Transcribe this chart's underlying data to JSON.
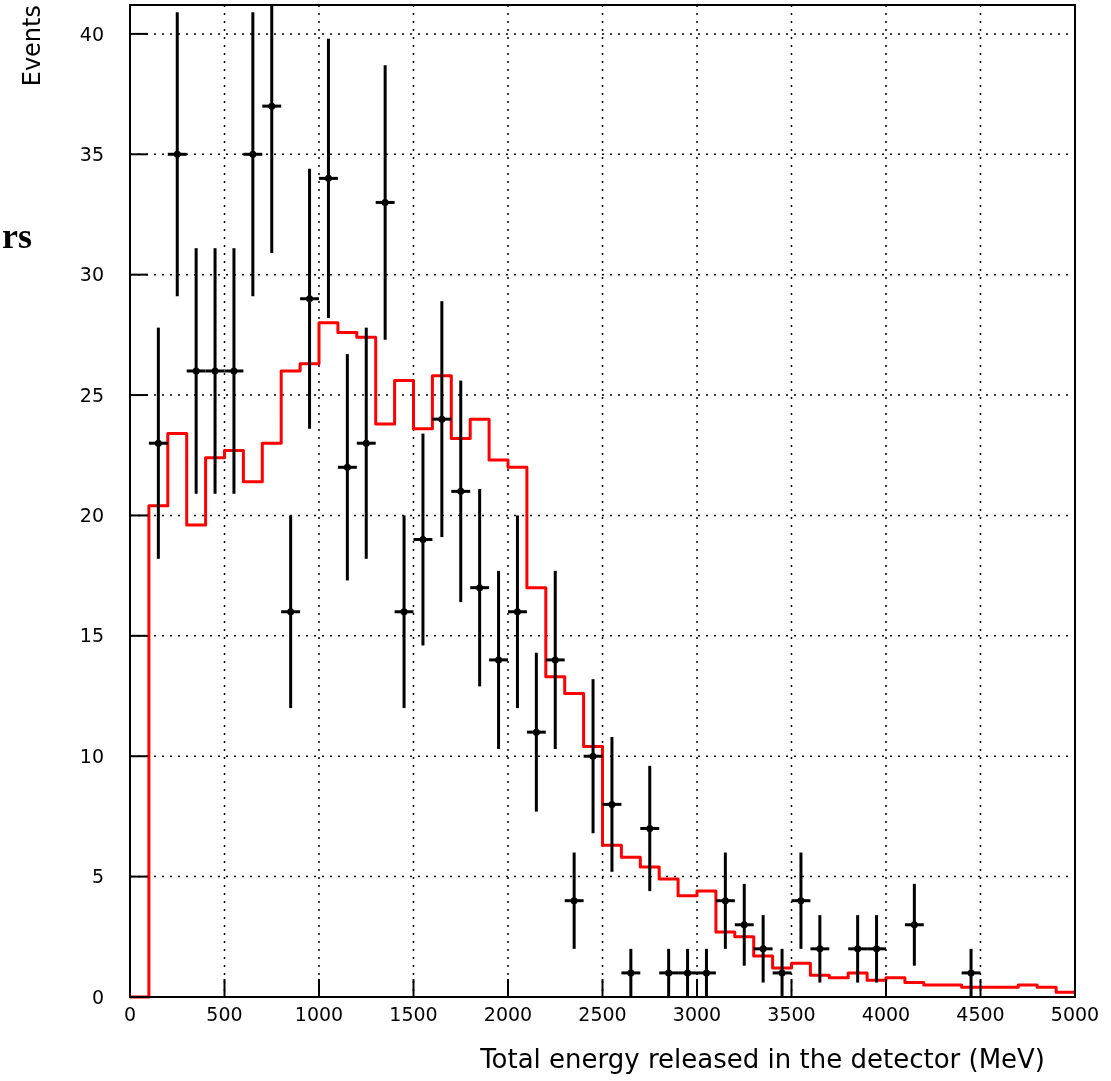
{
  "chart_data": {
    "type": "histogram",
    "xlabel": "Total energy released in the detector (MeV)",
    "ylabel": "Events",
    "annotations": [
      "rs"
    ],
    "xlim": [
      0,
      5000
    ],
    "xticks": [
      0,
      500,
      1000,
      1500,
      2000,
      2500,
      3000,
      3500,
      4000,
      4500,
      5000
    ],
    "ylim": [
      0,
      41.2
    ],
    "yticks": [
      0,
      5,
      10,
      15,
      20,
      25,
      30,
      35,
      40
    ],
    "grid": true,
    "bins": [
      0,
      100,
      200,
      300,
      400,
      500,
      600,
      700,
      800,
      900,
      1000,
      1100,
      1200,
      1300,
      1400,
      1500,
      1600,
      1700,
      1800,
      1900,
      2000,
      2100,
      2200,
      2300,
      2400,
      2500,
      2600,
      2700,
      2800,
      2900,
      3000,
      3100,
      3200,
      3300,
      3400,
      3500,
      3600,
      3700,
      3800,
      3900,
      4000,
      4100,
      4200,
      4300,
      4400,
      4500,
      4600,
      4700,
      4800,
      4900,
      5000
    ],
    "series": [
      {
        "type": "histogram",
        "color": "#ff0000",
        "values": [
          0,
          20.4,
          23.4,
          19.6,
          22.4,
          22.7,
          21.4,
          23,
          26,
          26.3,
          28,
          27.6,
          27.4,
          23.8,
          25.6,
          23.6,
          25.8,
          23.2,
          24,
          22.3,
          22,
          17,
          13.3,
          12.6,
          10.4,
          6.3,
          5.8,
          5.4,
          4.9,
          4.2,
          4.4,
          2.7,
          2.5,
          1.7,
          1.2,
          1.4,
          0.9,
          0.8,
          1.0,
          0.7,
          0.8,
          0.6,
          0.5,
          0.5,
          0.4,
          0.4,
          0.4,
          0.5,
          0.4,
          0.2
        ]
      },
      {
        "type": "scatter",
        "color": "#000000",
        "x": [
          150,
          250,
          350,
          450,
          550,
          650,
          750,
          850,
          950,
          1050,
          1150,
          1250,
          1350,
          1450,
          1550,
          1650,
          1750,
          1850,
          1950,
          2050,
          2150,
          2250,
          2350,
          2450,
          2550,
          2650,
          2750,
          2850,
          2950,
          3050,
          3150,
          3250,
          3350,
          3450,
          3550,
          3650,
          3850,
          3950,
          4150,
          4450
        ],
        "values": [
          23,
          35,
          26,
          26,
          26,
          35,
          37,
          16,
          29,
          34,
          22,
          23,
          33,
          16,
          19,
          24,
          21,
          17,
          14,
          16,
          11,
          14,
          4,
          10,
          8,
          1,
          7,
          1,
          1,
          1,
          4,
          3,
          2,
          1,
          4,
          2,
          2,
          2,
          3,
          1
        ],
        "errors": [
          4.8,
          5.9,
          5.1,
          5.1,
          5.1,
          5.9,
          [
            30.9,
            41.2
          ],
          4,
          5.4,
          5.8,
          4.7,
          4.8,
          5.7,
          4,
          4.4,
          4.9,
          4.6,
          4.1,
          3.7,
          4,
          3.3,
          3.7,
          2,
          3.2,
          2.8,
          1,
          2.6,
          1,
          1,
          1,
          2,
          1.7,
          1.4,
          1,
          2,
          1.4,
          1.4,
          1.4,
          1.7,
          1
        ],
        "xerrors": [
          50,
          50,
          50,
          50,
          50,
          50,
          50,
          50,
          50,
          50,
          50,
          50,
          50,
          50,
          50,
          50,
          50,
          50,
          50,
          50,
          50,
          50,
          50,
          50,
          50,
          50,
          50,
          50,
          50,
          50,
          50,
          50,
          50,
          50,
          50,
          50,
          50,
          50,
          50,
          50
        ]
      }
    ]
  }
}
